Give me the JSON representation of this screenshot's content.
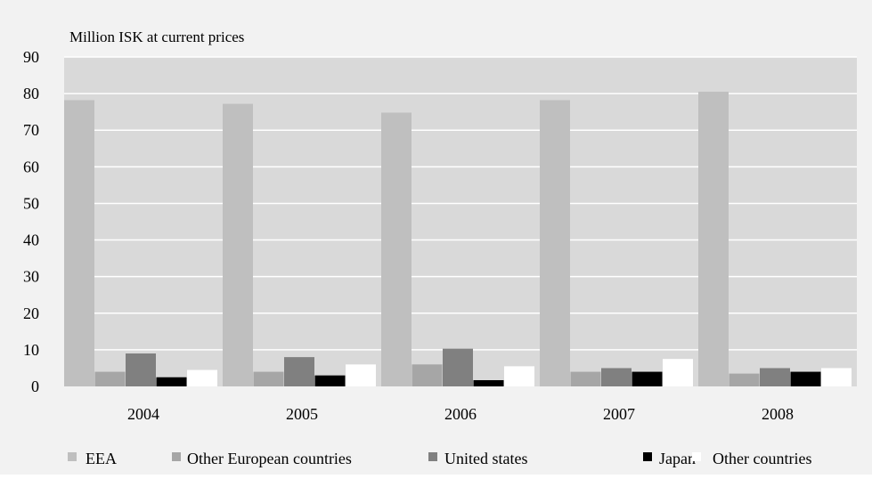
{
  "chart_data": {
    "type": "bar",
    "ylabel": "Million ISK at current prices",
    "categories": [
      "2004",
      "2005",
      "2006",
      "2007",
      "2008"
    ],
    "ylim": [
      0,
      90
    ],
    "yticks": [
      0,
      10,
      20,
      30,
      40,
      50,
      60,
      70,
      80,
      90
    ],
    "grid": true,
    "legend_position": "bottom",
    "series": [
      {
        "name": "EEA",
        "color": "#bfbfbf",
        "values": [
          78.2,
          77.2,
          74.8,
          78.2,
          80.5
        ]
      },
      {
        "name": "Other European countries",
        "color": "#a6a6a6",
        "values": [
          4.0,
          4.0,
          6.0,
          4.0,
          3.5
        ]
      },
      {
        "name": "United states",
        "color": "#808080",
        "values": [
          9.0,
          8.0,
          10.3,
          5.0,
          5.0
        ]
      },
      {
        "name": "Japan",
        "color": "#000000",
        "values": [
          2.5,
          3.0,
          1.7,
          4.0,
          4.0
        ]
      },
      {
        "name": "Other countries",
        "color": "#ffffff",
        "values": [
          4.5,
          6.0,
          5.5,
          7.5,
          5.0
        ]
      }
    ]
  },
  "colors": {
    "outer_background": "#f2f2f2",
    "plot_background": "#d9d9d9",
    "gridline": "#ffffff"
  }
}
